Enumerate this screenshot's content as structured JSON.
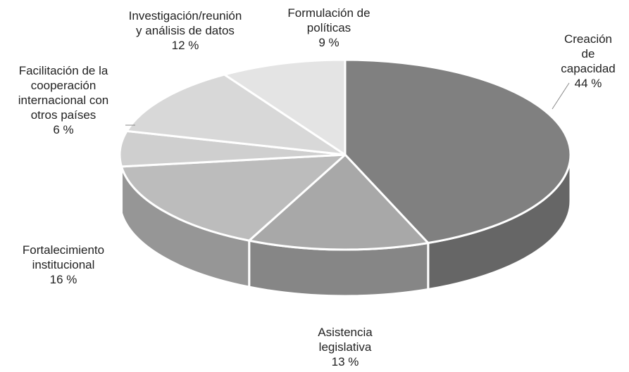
{
  "chart_data": {
    "type": "pie3d",
    "categories": [
      "Creación de\ncapacidad",
      "Asistencia\nlegislativa",
      "Fortalecimiento\ninstitucional",
      "Facilitación de la\ncooperación\ninternacional con\notros países",
      "Investigación/reunión\ny análisis de datos",
      "Formulación de\npolíticas"
    ],
    "values": [
      44,
      13,
      16,
      6,
      12,
      9
    ],
    "value_labels": [
      "44 %",
      "13 %",
      "16 %",
      "6 %",
      "12 %",
      "9 %"
    ],
    "colors": [
      "#808080",
      "#a8a8a8",
      "#bcbcbc",
      "#cfcfcf",
      "#d8d8d8",
      "#e4e4e4"
    ]
  }
}
